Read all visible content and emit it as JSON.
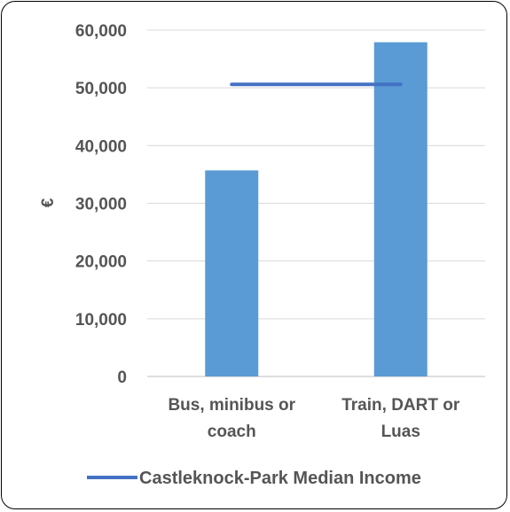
{
  "chart_data": {
    "type": "bar",
    "categories": [
      [
        "Bus, minibus or",
        "coach"
      ],
      [
        "Train, DART or",
        "Luas"
      ]
    ],
    "series": [
      {
        "values": [
          35700,
          57900
        ],
        "color": "#5B9BD5"
      }
    ],
    "reference_line": {
      "name": "Castleknock-Park Median Income",
      "value": 50600,
      "color": "#4472C4"
    },
    "ylabel": "€",
    "yticks": [
      "0",
      "10,000",
      "20,000",
      "30,000",
      "40,000",
      "50,000",
      "60,000"
    ],
    "ylim": [
      0,
      60000
    ],
    "grid": true,
    "legend_position": "bottom"
  }
}
